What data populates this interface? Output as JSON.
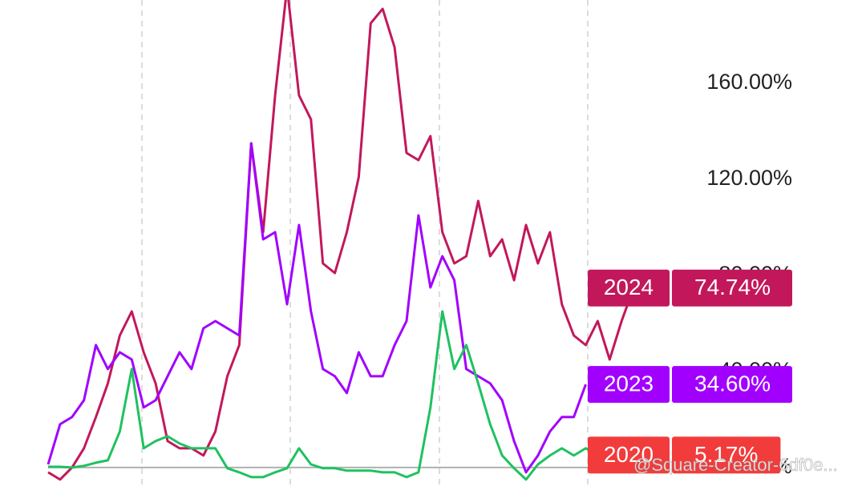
{
  "chart_data": {
    "type": "line",
    "categories": [
      null,
      null,
      null,
      null,
      null,
      null,
      null,
      null,
      null,
      null,
      null,
      null,
      null,
      null,
      null,
      null,
      null,
      null,
      null,
      null,
      null,
      null,
      null,
      null,
      null,
      null,
      null,
      null,
      null,
      null,
      null,
      null,
      null,
      null,
      null,
      null,
      null,
      null,
      null,
      null,
      null,
      null,
      null,
      null,
      null,
      null,
      null,
      null,
      null,
      null
    ],
    "ylim": [
      -7.7,
      194.7
    ],
    "yticks": [
      {
        "value": 0,
        "label": "0.00%"
      },
      {
        "value": 40,
        "label": "40.00%"
      },
      {
        "value": 80,
        "label": "80.00%"
      },
      {
        "value": 120,
        "label": "120.00%"
      },
      {
        "value": 160,
        "label": "160.00%"
      }
    ],
    "series": [
      {
        "name": "2024",
        "color": "#c2185b",
        "label_color": "#c2185b",
        "values": [
          -2,
          -5,
          0,
          8,
          21,
          35,
          55,
          65,
          48,
          35,
          11,
          8,
          8,
          5,
          15,
          38,
          51,
          135,
          98,
          155,
          200,
          155,
          145,
          85,
          81,
          98,
          121,
          185,
          191,
          175,
          131,
          128,
          138,
          98,
          85,
          88,
          111,
          88,
          95,
          78,
          101,
          85,
          98,
          68,
          55,
          51,
          61,
          45,
          61,
          74.74
        ],
        "value_labels": [
          null,
          null,
          null,
          null,
          null,
          null,
          null,
          null,
          null,
          null,
          null,
          null,
          null,
          null,
          null,
          null,
          null,
          null,
          null,
          null,
          null,
          null,
          null,
          null,
          null,
          null,
          null,
          null,
          null,
          null,
          null,
          null,
          null,
          null,
          null,
          null,
          null,
          null,
          null,
          null,
          null,
          null,
          null,
          null,
          null,
          null,
          null,
          null,
          null,
          "74.74%"
        ]
      },
      {
        "name": "2023",
        "color": "#a100ff",
        "label_color": "#a100ff",
        "values": [
          1.3,
          18,
          21,
          28,
          51,
          41,
          48,
          45,
          25,
          28,
          38,
          48,
          41,
          58,
          61,
          58,
          55,
          135,
          95,
          98,
          68,
          101,
          65,
          41,
          38,
          31,
          48,
          38,
          38,
          51,
          61,
          105,
          75,
          88,
          78,
          41,
          38,
          35,
          28,
          11,
          -2,
          5,
          15,
          21,
          21,
          34.6,
          null,
          null,
          null,
          null
        ],
        "value_labels": [
          null,
          null,
          null,
          null,
          null,
          null,
          null,
          null,
          null,
          null,
          null,
          null,
          null,
          null,
          null,
          null,
          null,
          null,
          null,
          null,
          null,
          null,
          null,
          null,
          null,
          null,
          null,
          null,
          null,
          null,
          null,
          null,
          null,
          null,
          null,
          null,
          null,
          null,
          null,
          null,
          null,
          null,
          null,
          null,
          null,
          "34.60%",
          null,
          null,
          null,
          null
        ]
      },
      {
        "name": "2020",
        "color": "#1fc160",
        "label_color": "#f23b3b",
        "values": [
          0.3,
          0.3,
          0,
          0.7,
          2,
          3,
          15,
          41,
          8,
          11,
          13,
          10,
          8,
          8,
          8,
          -0.3,
          -2,
          -4,
          -4,
          -2,
          -0.3,
          8,
          1.3,
          -0.3,
          -0.3,
          -1.3,
          -1.3,
          -1.3,
          -2,
          -2,
          -4,
          -2,
          25,
          65,
          41,
          51,
          35,
          18,
          5,
          -0.3,
          -5,
          1.3,
          5,
          8,
          5,
          8,
          5,
          5.17,
          null,
          null
        ],
        "value_labels": [
          null,
          null,
          null,
          null,
          null,
          null,
          null,
          null,
          null,
          null,
          null,
          null,
          null,
          null,
          null,
          null,
          null,
          null,
          null,
          null,
          null,
          null,
          null,
          null,
          null,
          null,
          null,
          null,
          null,
          null,
          null,
          null,
          null,
          null,
          null,
          null,
          null,
          null,
          null,
          null,
          null,
          null,
          null,
          null,
          null,
          null,
          null,
          "5.17%",
          null,
          null
        ]
      }
    ]
  },
  "watermark": "@Square-Creator-6df0e..."
}
